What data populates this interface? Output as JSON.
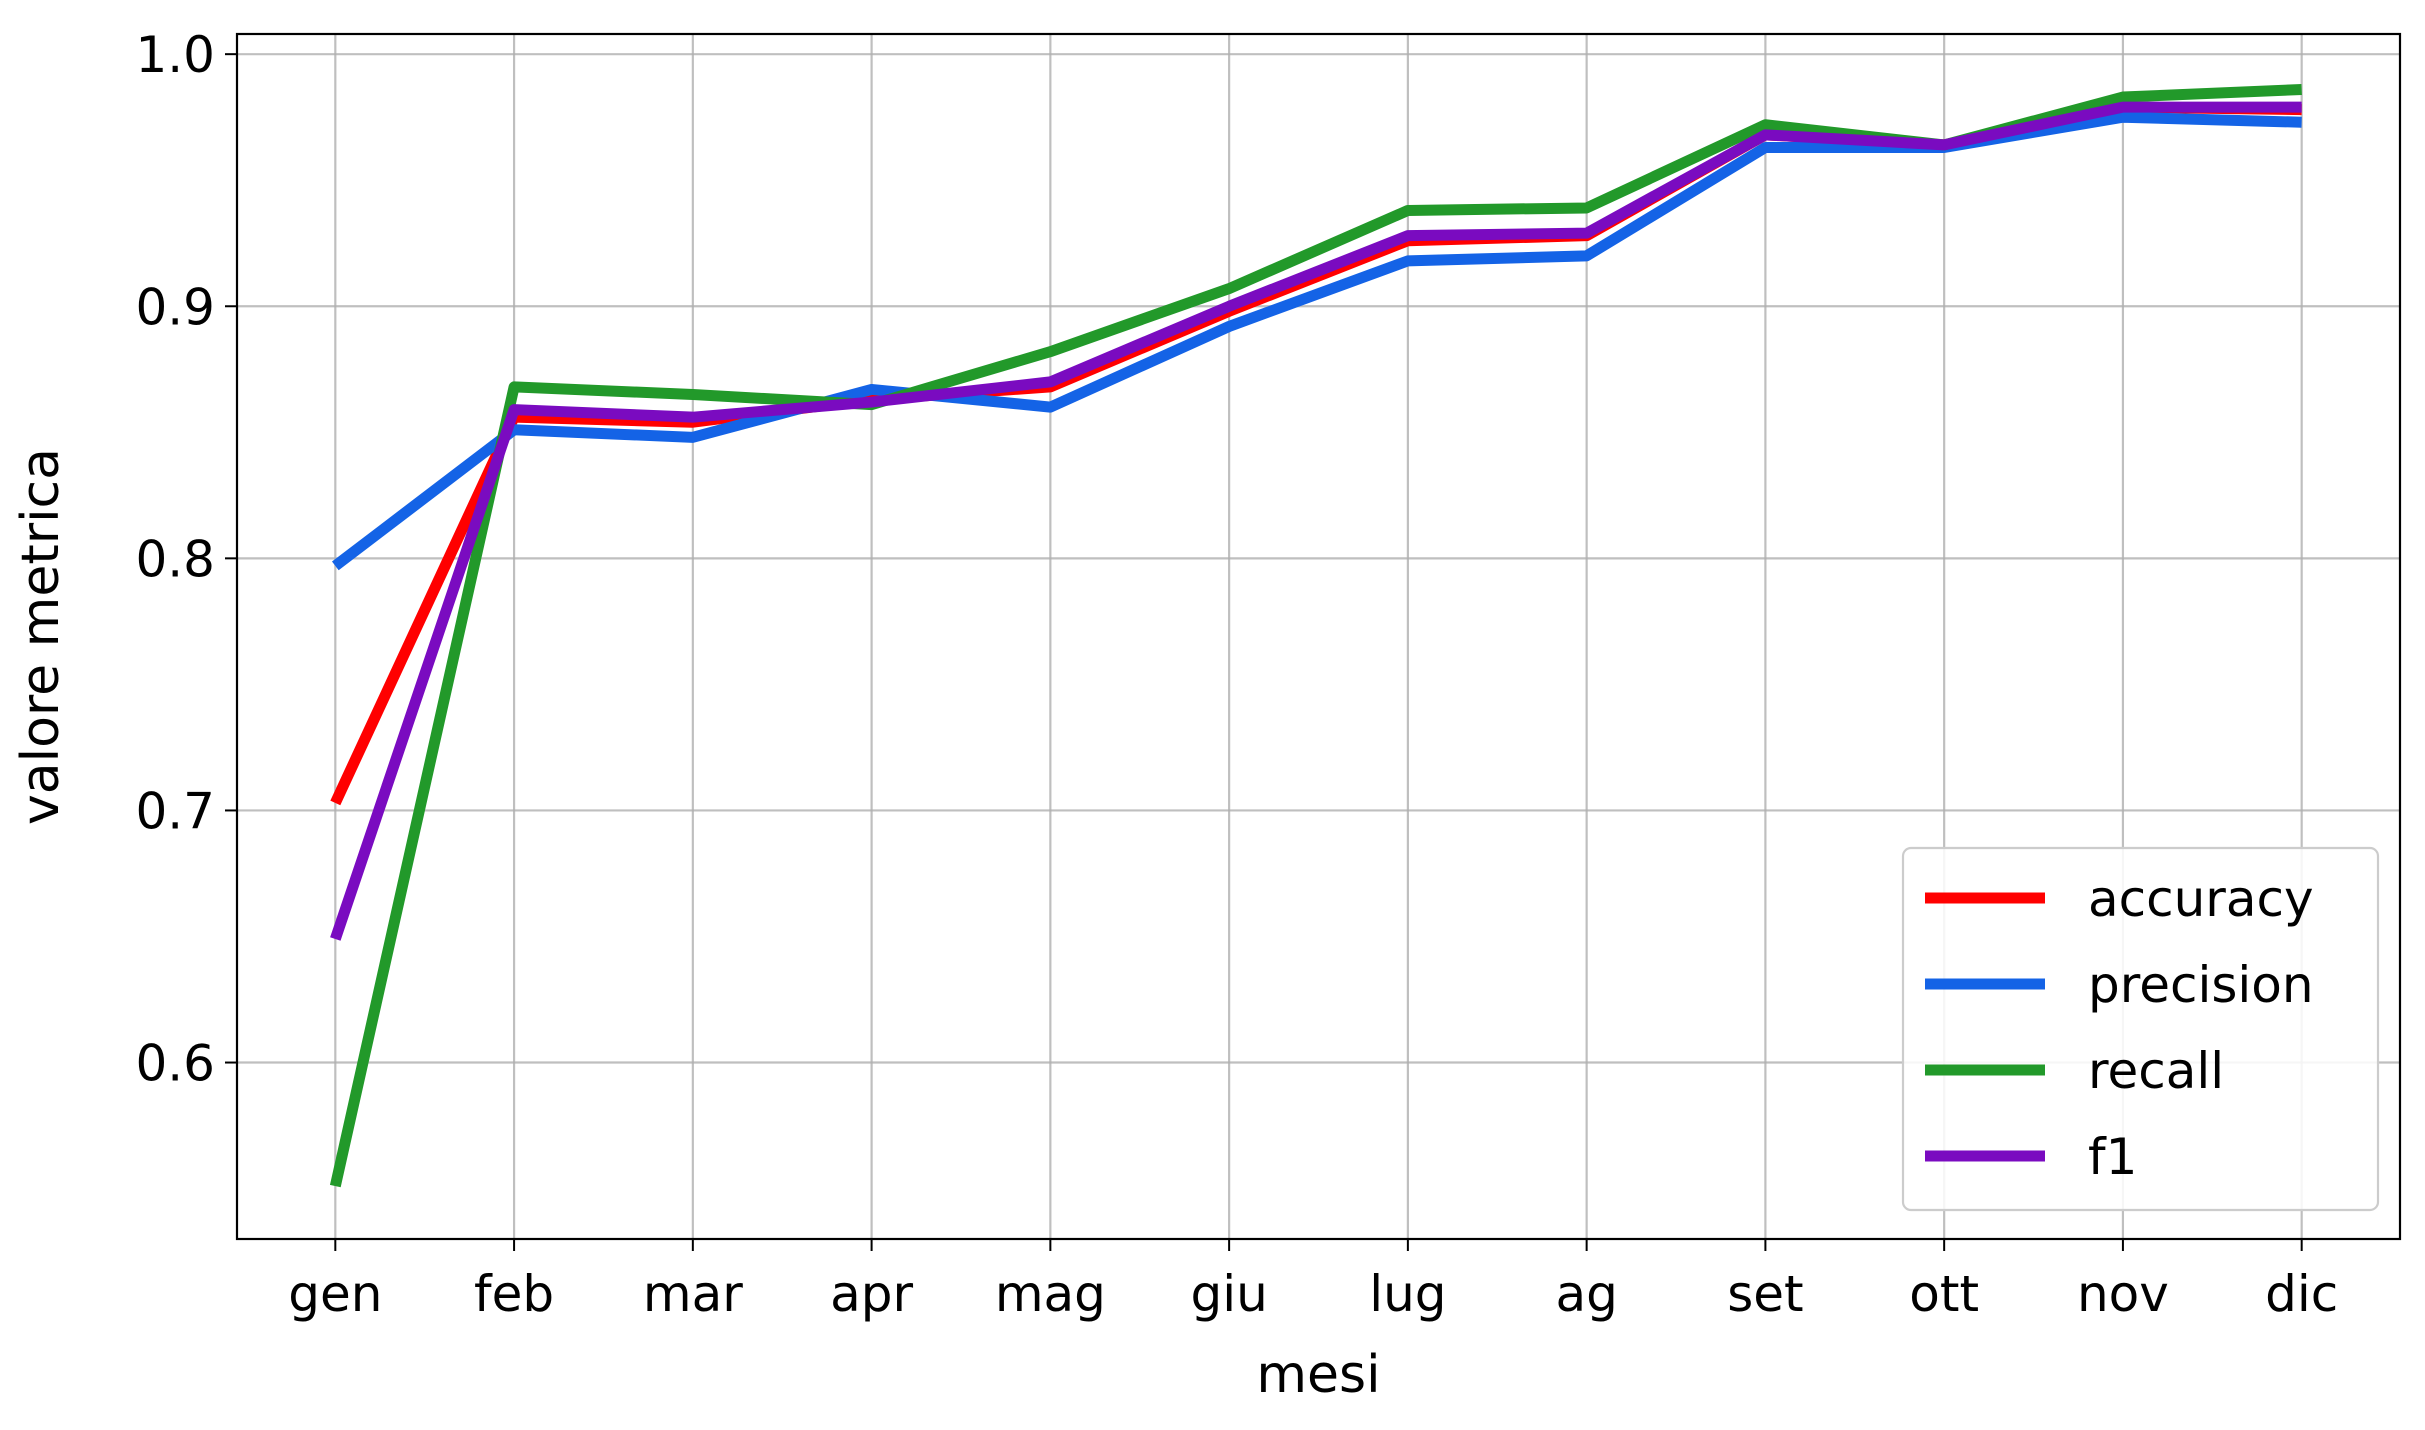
{
  "chart_data": {
    "type": "line",
    "xlabel": "mesi",
    "ylabel": "valore metrica",
    "categories": [
      "gen",
      "feb",
      "mar",
      "apr",
      "mag",
      "giu",
      "lug",
      "ag",
      "set",
      "ott",
      "nov",
      "dic"
    ],
    "ylim": [
      0.53,
      1.008
    ],
    "yticks": [
      0.6,
      0.7,
      0.8,
      0.9,
      1.0
    ],
    "ytick_labels": [
      "0.6",
      "0.7",
      "0.8",
      "0.9",
      "1.0"
    ],
    "grid": true,
    "legend_position": "lower-right",
    "series": [
      {
        "name": "accuracy",
        "color": "#ff0000",
        "values": [
          0.703,
          0.856,
          0.854,
          0.863,
          0.868,
          0.898,
          0.926,
          0.928,
          0.968,
          0.964,
          0.979,
          0.978
        ]
      },
      {
        "name": "precision",
        "color": "#1463e6",
        "values": [
          0.797,
          0.851,
          0.848,
          0.867,
          0.86,
          0.892,
          0.918,
          0.92,
          0.963,
          0.963,
          0.975,
          0.973
        ]
      },
      {
        "name": "recall",
        "color": "#22992a",
        "values": [
          0.551,
          0.868,
          0.865,
          0.861,
          0.882,
          0.907,
          0.938,
          0.939,
          0.972,
          0.964,
          0.983,
          0.986
        ]
      },
      {
        "name": "f1",
        "color": "#7a0bc0",
        "values": [
          0.649,
          0.859,
          0.856,
          0.862,
          0.87,
          0.9,
          0.928,
          0.929,
          0.968,
          0.964,
          0.979,
          0.979
        ]
      }
    ]
  }
}
